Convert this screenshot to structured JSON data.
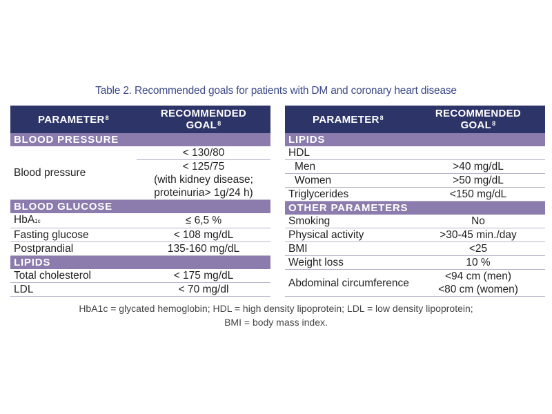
{
  "title": "Table 2. Recommended goals for patients with DM and coronary heart disease",
  "left": {
    "header": {
      "parameter": "PARAMETER",
      "parameter_ref": "8",
      "goal_line1": "RECOMMENDED",
      "goal_line2": "GOAL",
      "goal_ref": "8"
    },
    "sections": {
      "blood_pressure": "BLOOD PRESSURE",
      "blood_glucose": "BLOOD GLUCOSE",
      "lipids": "LIPIDS"
    },
    "bp": {
      "param": "Blood pressure",
      "goal1": "< 130/80",
      "goal2_l1": "< 125/75",
      "goal2_l2": "(with kidney disease;",
      "goal2_l3": "proteinuria> 1g/24 h)"
    },
    "hba1c": {
      "param_main": "HbA",
      "param_sub": "1c",
      "goal": "≤ 6,5 %"
    },
    "fasting": {
      "param": "Fasting glucose",
      "goal": "< 108 mg/dL"
    },
    "postprandial": {
      "param": "Postprandial",
      "goal": "135-160 mg/dL"
    },
    "total_chol": {
      "param": "Total cholesterol",
      "goal": "< 175 mg/dL"
    },
    "ldl": {
      "param": "LDL",
      "goal": "< 70 mg/dl"
    }
  },
  "right": {
    "header": {
      "parameter": "PARAMETER",
      "parameter_ref": "8",
      "goal_line1": "RECOMMENDED",
      "goal_line2": "GOAL",
      "goal_ref": "8"
    },
    "sections": {
      "lipids": "LIPIDS",
      "other": "OTHER PARAMETERS"
    },
    "hdl": {
      "param": "HDL"
    },
    "men": {
      "param": "Men",
      "goal": ">40 mg/dL"
    },
    "women": {
      "param": "Women",
      "goal": ">50 mg/dL"
    },
    "trig": {
      "param": "Triglycerides",
      "goal": "<150 mg/dL"
    },
    "smoking": {
      "param": "Smoking",
      "goal": "No"
    },
    "activity": {
      "param": "Physical activity",
      "goal": ">30-45 min./day"
    },
    "bmi": {
      "param": "BMI",
      "goal": "<25"
    },
    "weight": {
      "param": "Weight loss",
      "goal": "10 %"
    },
    "abdominal": {
      "param": "Abdominal circumference",
      "goal1": "<94 cm (men)",
      "goal2": "<80 cm (women)"
    }
  },
  "footnote": {
    "line1": "HbA1c = glycated hemoglobin; HDL = high density lipoprotein; LDL = low density lipoprotein;",
    "line2": "BMI = body mass index."
  }
}
